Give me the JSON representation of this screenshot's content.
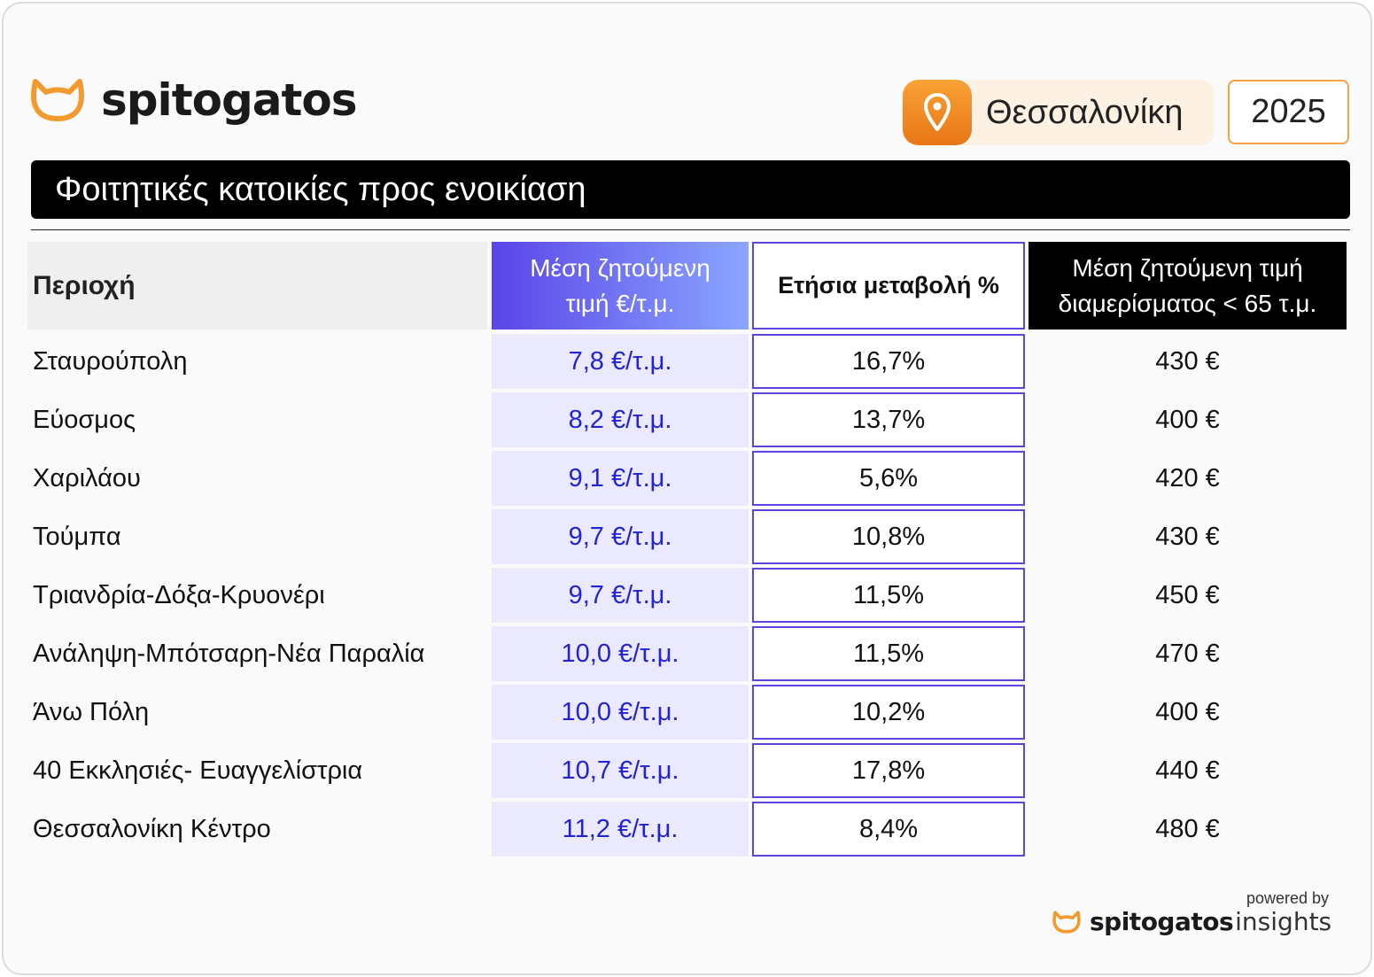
{
  "brand": {
    "logo_text": "spitogatos",
    "logo_icon": "cat-head-outline-icon",
    "accent_color": "#f39a2e"
  },
  "location": {
    "icon": "map-pin-icon",
    "name": "Θεσσαλονίκη"
  },
  "year": "2025",
  "title": "Φοιτητικές κατοικίες προς ενοικίαση",
  "table": {
    "headers": {
      "area": "Περιοχή",
      "price_line1": "Μέση ζητούμενη",
      "price_line2": "τιμή €/τ.μ.",
      "change": "Ετήσια μεταβολή %",
      "apt_line1": "Μέση ζητούμενη τιμή",
      "apt_line2": "διαμερίσματος < 65 τ.μ."
    },
    "rows": [
      {
        "area": "Σταυρούπολη",
        "price": "7,8 €/τ.μ.",
        "change": "16,7%",
        "apt": "430 €"
      },
      {
        "area": "Εύοσμος",
        "price": "8,2 €/τ.μ.",
        "change": "13,7%",
        "apt": "400 €"
      },
      {
        "area": "Χαριλάου",
        "price": "9,1 €/τ.μ.",
        "change": "5,6%",
        "apt": "420 €"
      },
      {
        "area": "Τούμπα",
        "price": "9,7 €/τ.μ.",
        "change": "10,8%",
        "apt": "430 €"
      },
      {
        "area": "Τριανδρία-Δόξα-Κρυονέρι",
        "price": "9,7 €/τ.μ.",
        "change": "11,5%",
        "apt": "450 €"
      },
      {
        "area": "Ανάληψη-Μπότσαρη-Νέα Παραλία",
        "price": "10,0 €/τ.μ.",
        "change": "11,5%",
        "apt": "470 €"
      },
      {
        "area": "Άνω Πόλη",
        "price": "10,0 €/τ.μ.",
        "change": "10,2%",
        "apt": "400 €"
      },
      {
        "area": "40 Εκκλησιές- Ευαγγελίστρια",
        "price": "10,7 €/τ.μ.",
        "change": "17,8%",
        "apt": "440 €"
      },
      {
        "area": "Θεσσαλονίκη Κέντρο",
        "price": "11,2 €/τ.μ.",
        "change": "8,4%",
        "apt": "480 €"
      }
    ]
  },
  "footer": {
    "powered_by": "powered by",
    "logo_bold": "spitogatos",
    "logo_light": "insights"
  }
}
